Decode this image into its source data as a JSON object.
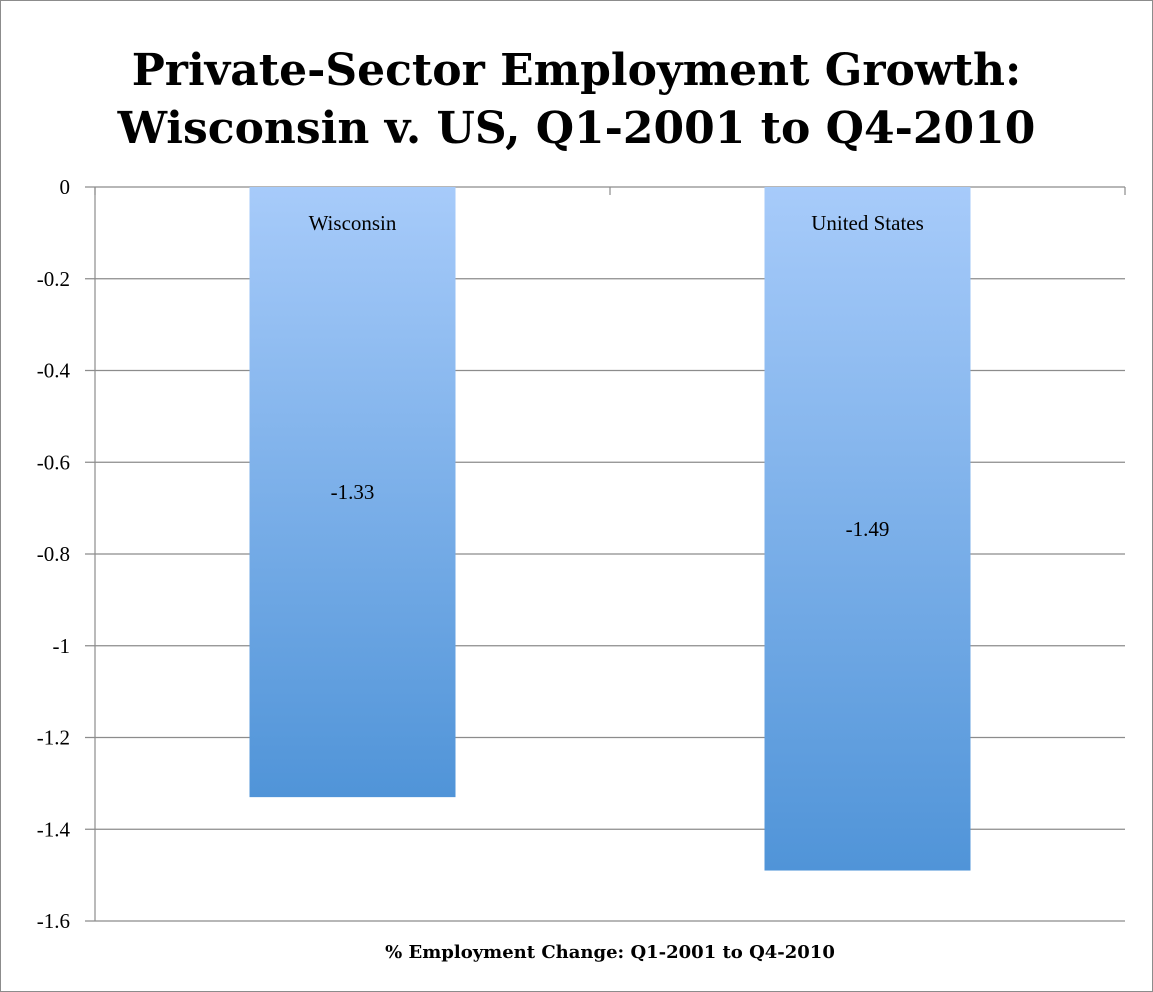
{
  "chart_data": {
    "type": "bar",
    "title": "Private-Sector Employment Growth:\nWisconsin v. US, Q1-2001 to Q4-2010",
    "title_lines": [
      "Private-Sector Employment Growth:",
      "Wisconsin v. US, Q1-2001 to Q4-2010"
    ],
    "categories": [
      "Wisconsin",
      "United States"
    ],
    "values": [
      -1.33,
      -1.49
    ],
    "data_labels": [
      "-1.33",
      "-1.49"
    ],
    "xlabel": "% Employment Change: Q1-2001 to Q4-2010",
    "ylabel": "",
    "ylim": [
      -1.6,
      0
    ],
    "yticks": [
      0,
      -0.2,
      -0.4,
      -0.6,
      -0.8,
      -1,
      -1.2,
      -1.4,
      -1.6
    ],
    "ytick_labels": [
      "0",
      "-0.2",
      "-0.4",
      "-0.6",
      "-0.8",
      "-1",
      "-1.2",
      "-1.4",
      "-1.6"
    ],
    "grid": true,
    "legend": "none",
    "colors": {
      "bar_top": "#a7cbfa",
      "bar_bottom": "#5094d8",
      "grid": "#8c8c8c"
    }
  }
}
